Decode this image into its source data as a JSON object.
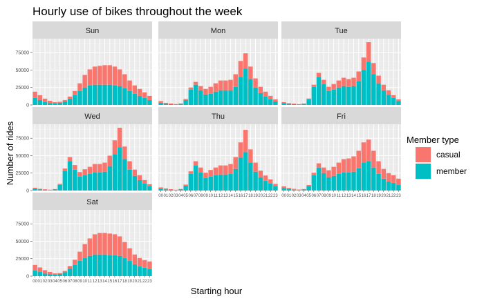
{
  "chart_data": {
    "type": "bar",
    "stacked": true,
    "title": "Hourly use of bikes throughout the week",
    "xlabel": "Starting hour",
    "ylabel": "Number of rides",
    "ylim": [
      0,
      95000
    ],
    "y_ticks": [
      0,
      25000,
      50000,
      75000
    ],
    "y_tick_labels": [
      "0",
      "25000",
      "50000",
      "75000"
    ],
    "categories": [
      "00",
      "01",
      "02",
      "03",
      "04",
      "05",
      "06",
      "07",
      "08",
      "09",
      "10",
      "11",
      "12",
      "13",
      "14",
      "15",
      "16",
      "17",
      "18",
      "19",
      "20",
      "21",
      "22",
      "23"
    ],
    "legend": {
      "title": "Member type",
      "entries": [
        {
          "label": "casual",
          "color": "#F8766D"
        },
        {
          "label": "member",
          "color": "#00BFC4"
        }
      ]
    },
    "facets": [
      {
        "label": "Sun",
        "member": [
          10000,
          7000,
          4000,
          2500,
          2000,
          3000,
          5000,
          9000,
          14000,
          20000,
          25000,
          28000,
          29000,
          29000,
          29000,
          29000,
          28000,
          27000,
          24000,
          20000,
          16000,
          13000,
          10000,
          7000
        ],
        "casual": [
          9000,
          7000,
          5000,
          3500,
          2000,
          1500,
          2000,
          3000,
          6000,
          11000,
          18000,
          23000,
          26000,
          27000,
          28000,
          28000,
          27000,
          24000,
          20000,
          15000,
          12000,
          10000,
          8000,
          6000
        ]
      },
      {
        "label": "Mon",
        "member": [
          3000,
          1500,
          1000,
          800,
          1500,
          7000,
          22000,
          29000,
          21000,
          15000,
          16000,
          19000,
          21000,
          21000,
          21000,
          26000,
          40000,
          52000,
          37000,
          25000,
          17000,
          12000,
          8000,
          5000
        ],
        "casual": [
          2500,
          1500,
          1000,
          500,
          600,
          1500,
          3000,
          4000,
          6000,
          8000,
          10000,
          12000,
          14000,
          14000,
          15000,
          18000,
          23000,
          22000,
          18000,
          13000,
          9000,
          7000,
          5000,
          3000
        ]
      },
      {
        "label": "Tue",
        "member": [
          2500,
          1500,
          1000,
          700,
          1500,
          8000,
          26000,
          40000,
          30000,
          20000,
          22000,
          25000,
          27000,
          26000,
          27000,
          34000,
          50000,
          62000,
          44000,
          31000,
          21000,
          15000,
          10000,
          5500
        ],
        "casual": [
          1500,
          1000,
          800,
          400,
          500,
          1200,
          3000,
          6000,
          6000,
          6000,
          8000,
          10000,
          12000,
          11000,
          12000,
          14000,
          18000,
          28000,
          16000,
          11000,
          8000,
          6000,
          4000,
          2500
        ]
      },
      {
        "label": "Wed",
        "member": [
          2500,
          1500,
          1000,
          700,
          1500,
          8000,
          28000,
          42000,
          30000,
          20000,
          22000,
          24000,
          26000,
          26000,
          27000,
          35000,
          52000,
          62000,
          45000,
          30000,
          21000,
          15000,
          10000,
          6000
        ],
        "casual": [
          1500,
          1000,
          800,
          500,
          600,
          1500,
          3500,
          6000,
          6500,
          6500,
          8500,
          10000,
          12000,
          12000,
          13000,
          15000,
          20000,
          28000,
          18000,
          12000,
          9000,
          7000,
          5000,
          3000
        ]
      },
      {
        "label": "Thu",
        "member": [
          2500,
          1500,
          1000,
          700,
          1500,
          7000,
          24000,
          36000,
          26000,
          18000,
          20000,
          22000,
          23000,
          23000,
          24000,
          31000,
          47000,
          55000,
          40000,
          27000,
          19000,
          14000,
          10000,
          6000
        ],
        "casual": [
          2000,
          1500,
          1000,
          500,
          700,
          1500,
          3500,
          6000,
          7000,
          7500,
          9500,
          11000,
          13000,
          13000,
          14000,
          17000,
          22000,
          32000,
          19000,
          13000,
          9500,
          7500,
          6000,
          3500
        ]
      },
      {
        "label": "Fri",
        "member": [
          3500,
          2000,
          1200,
          800,
          1500,
          6500,
          22000,
          33000,
          25000,
          19000,
          21000,
          24000,
          26000,
          26000,
          27000,
          32000,
          40000,
          42000,
          33000,
          24000,
          17000,
          13000,
          11000,
          8000
        ],
        "casual": [
          2500,
          1800,
          1200,
          600,
          600,
          1400,
          3500,
          6000,
          8000,
          10000,
          13000,
          16000,
          19000,
          20000,
          22000,
          25000,
          29000,
          31000,
          24000,
          18000,
          14000,
          12000,
          11000,
          9000
        ]
      },
      {
        "label": "Sat",
        "member": [
          8000,
          6000,
          3500,
          2500,
          2000,
          3000,
          5500,
          11000,
          16000,
          22000,
          26000,
          29000,
          31000,
          31000,
          31000,
          30000,
          30000,
          29000,
          26000,
          22000,
          17000,
          14000,
          12000,
          10000
        ],
        "casual": [
          8000,
          6500,
          5000,
          3500,
          2000,
          1500,
          2000,
          3500,
          7500,
          13000,
          20000,
          25000,
          29000,
          31000,
          31000,
          31000,
          30000,
          28000,
          23000,
          18000,
          14000,
          12000,
          11000,
          11000
        ]
      }
    ]
  }
}
